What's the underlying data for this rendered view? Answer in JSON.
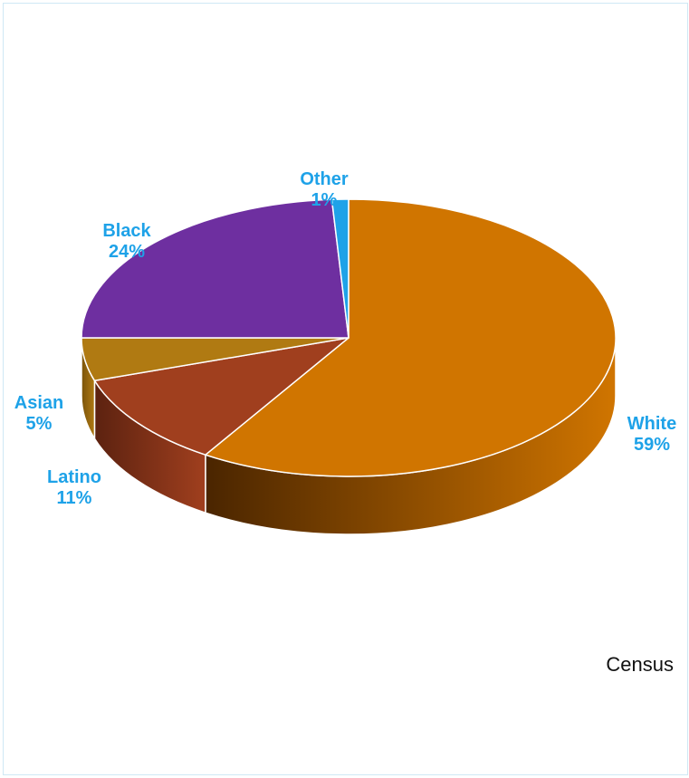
{
  "chart_data": {
    "type": "pie",
    "categories": [
      "White",
      "Latino",
      "Asian",
      "Black",
      "Other"
    ],
    "values": [
      59,
      11,
      5,
      24,
      1
    ],
    "unit": "%",
    "labels": [
      "59%",
      "11%",
      "5%",
      "24%",
      "1%"
    ],
    "colors": [
      "#d07500",
      "#a03f1e",
      "#b07a12",
      "#6e2fa0",
      "#1ea2e8"
    ],
    "side_dark": [
      "#4a2500",
      "#5c2210",
      "#7a530a",
      "#3d1a5a",
      "#0d5a85"
    ],
    "label_color": "#1ea2e8",
    "title": "",
    "style": "3d"
  },
  "footer": {
    "source": "Census"
  }
}
